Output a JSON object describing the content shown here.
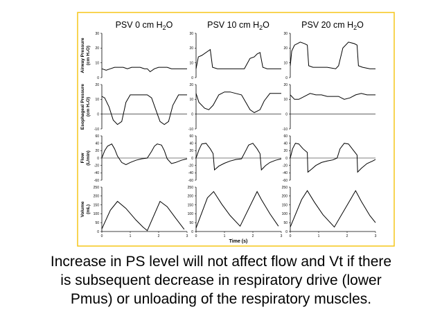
{
  "chart_data": {
    "type": "line",
    "columns": [
      {
        "title_main": "PSV 0 cm H",
        "title_sub": "2",
        "title_end": "O"
      },
      {
        "title_main": "PSV 10 cm H",
        "title_sub": "2",
        "title_end": "O"
      },
      {
        "title_main": "PSV 20 cm H",
        "title_sub": "2",
        "title_end": "O"
      }
    ],
    "rows": [
      {
        "label_lines": [
          "Airway Pressure",
          "(cm H₂O)"
        ],
        "ylim": [
          0,
          30
        ],
        "yticks": [
          "30",
          "20",
          "10",
          "0"
        ],
        "zero_line": false
      },
      {
        "label_lines": [
          "Esophageal Pressure",
          "(cm H₂O)"
        ],
        "ylim": [
          -10,
          20
        ],
        "yticks": [
          "20",
          "10",
          "0",
          "-10"
        ],
        "zero_line": true
      },
      {
        "label_lines": [
          "Flow",
          "(L/min)"
        ],
        "ylim": [
          -60,
          60
        ],
        "yticks": [
          "60",
          "40",
          "20",
          "0",
          "-20",
          "-40",
          "-60"
        ],
        "zero_line": true
      },
      {
        "label_lines": [
          "Volume",
          "(mL)"
        ],
        "ylim": [
          0,
          250
        ],
        "yticks": [
          "250",
          "200",
          "150",
          "100",
          "50",
          "0"
        ],
        "zero_line": false
      }
    ],
    "xlim": [
      0,
      3
    ],
    "xticks": [
      "0",
      "1",
      "2",
      "3"
    ],
    "xlabel": "Time (s)",
    "series": [
      [
        {
          "x": [
            0,
            0.15,
            0.3,
            0.45,
            0.6,
            0.75,
            0.9,
            1.05,
            1.2,
            1.35,
            1.5,
            1.6,
            1.7,
            1.85,
            2.0,
            2.15,
            2.3,
            2.45,
            2.6,
            2.75,
            2.9,
            3.0
          ],
          "y": [
            6,
            5,
            6,
            7,
            7,
            7,
            6,
            7,
            7,
            7,
            6,
            6,
            4,
            6,
            7,
            7,
            7,
            6,
            6,
            6,
            6,
            6
          ]
        },
        {
          "x": [
            0,
            0.1,
            0.25,
            0.4,
            0.55,
            0.7,
            0.85,
            1.0,
            1.2,
            1.4,
            1.6,
            1.75,
            1.9,
            2.05,
            2.2,
            2.35,
            2.5,
            2.7,
            2.9,
            3.0
          ],
          "y": [
            12,
            11,
            5,
            -4,
            -7,
            -5,
            8,
            13,
            13,
            13,
            13,
            11,
            3,
            -5,
            -7,
            -5,
            6,
            13,
            13,
            13
          ]
        },
        {
          "x": [
            0,
            0.1,
            0.2,
            0.35,
            0.45,
            0.55,
            0.7,
            0.85,
            1.0,
            1.2,
            1.4,
            1.6,
            1.75,
            1.85,
            1.95,
            2.1,
            2.2,
            2.3,
            2.45,
            2.6,
            2.8,
            3.0
          ],
          "y": [
            0,
            20,
            32,
            38,
            25,
            5,
            -12,
            -18,
            -12,
            -6,
            -2,
            0,
            18,
            32,
            38,
            35,
            20,
            -2,
            -15,
            -12,
            -6,
            -2
          ]
        },
        {
          "x": [
            0,
            0.3,
            0.55,
            0.85,
            1.2,
            1.45,
            1.6,
            2.05,
            2.3,
            2.6,
            2.9
          ],
          "y": [
            15,
            120,
            170,
            130,
            65,
            25,
            5,
            170,
            140,
            75,
            12
          ]
        }
      ],
      [
        {
          "x": [
            0,
            0.08,
            0.2,
            0.5,
            0.58,
            0.75,
            1.0,
            1.3,
            1.7,
            1.9,
            2.05,
            2.15,
            2.25,
            2.35,
            2.5,
            2.8,
            3.0
          ],
          "y": [
            6,
            14,
            15,
            19,
            7,
            6,
            6,
            6,
            6,
            13,
            14,
            16,
            17,
            7,
            6,
            6,
            6
          ]
        },
        {
          "x": [
            0,
            0.1,
            0.3,
            0.45,
            0.6,
            0.8,
            1.0,
            1.2,
            1.4,
            1.6,
            1.75,
            1.9,
            2.05,
            2.25,
            2.4,
            2.6,
            2.8,
            3.0
          ],
          "y": [
            14,
            8,
            4,
            3,
            6,
            13,
            15,
            15,
            14,
            13,
            8,
            3,
            1,
            3,
            9,
            14,
            14,
            14
          ]
        },
        {
          "x": [
            0,
            0.1,
            0.2,
            0.35,
            0.5,
            0.6,
            0.65,
            0.8,
            1.0,
            1.2,
            1.4,
            1.6,
            1.75,
            1.85,
            2.0,
            2.15,
            2.25,
            2.3,
            2.45,
            2.6,
            2.8,
            3.0
          ],
          "y": [
            0,
            22,
            38,
            40,
            25,
            12,
            -32,
            -22,
            -14,
            -8,
            -4,
            -2,
            20,
            35,
            40,
            25,
            12,
            -32,
            -20,
            -12,
            -6,
            -2
          ]
        },
        {
          "x": [
            0,
            0.4,
            0.62,
            0.9,
            1.2,
            1.55,
            2.15,
            2.3,
            2.6,
            2.9
          ],
          "y": [
            20,
            190,
            225,
            155,
            90,
            30,
            225,
            180,
            100,
            30
          ]
        }
      ],
      [
        {
          "x": [
            0,
            0.05,
            0.15,
            0.35,
            0.5,
            0.6,
            0.65,
            0.8,
            1.0,
            1.3,
            1.6,
            1.7,
            1.85,
            2.05,
            2.25,
            2.35,
            2.4,
            2.55,
            2.8,
            3.0
          ],
          "y": [
            8,
            18,
            22,
            24,
            23,
            22,
            8,
            7,
            7,
            7,
            6,
            8,
            20,
            24,
            23,
            22,
            8,
            7,
            6,
            6
          ]
        },
        {
          "x": [
            0,
            0.15,
            0.3,
            0.5,
            0.7,
            0.9,
            1.1,
            1.3,
            1.5,
            1.7,
            1.9,
            2.1,
            2.3,
            2.5,
            2.7,
            2.9,
            3.0
          ],
          "y": [
            13,
            10,
            10,
            12,
            14,
            13,
            13,
            12,
            12,
            12,
            10,
            11,
            13,
            14,
            13,
            13,
            13
          ]
        },
        {
          "x": [
            0,
            0.08,
            0.18,
            0.3,
            0.45,
            0.6,
            0.62,
            0.75,
            0.9,
            1.1,
            1.3,
            1.5,
            1.65,
            1.75,
            1.9,
            2.05,
            2.25,
            2.35,
            2.37,
            2.5,
            2.7,
            2.9,
            3.0
          ],
          "y": [
            0,
            25,
            40,
            38,
            25,
            15,
            -38,
            -30,
            -20,
            -12,
            -8,
            -5,
            0,
            25,
            40,
            38,
            18,
            8,
            -38,
            -28,
            -15,
            -8,
            -4
          ]
        },
        {
          "x": [
            0,
            0.4,
            0.6,
            0.85,
            1.15,
            1.55,
            2.3,
            2.5,
            2.8,
            3.0
          ],
          "y": [
            25,
            180,
            230,
            165,
            95,
            25,
            230,
            170,
            90,
            50
          ]
        }
      ]
    ]
  },
  "caption": {
    "line1": "Increase in PS level will not affect flow and Vt if there",
    "line2": "is subsequent decrease in respiratory drive (lower",
    "line3": "Pmus) or unloading of the respiratory muscles."
  },
  "colors": {
    "frame": "#f5c518",
    "line": "#000000",
    "background": "#ffffff"
  }
}
